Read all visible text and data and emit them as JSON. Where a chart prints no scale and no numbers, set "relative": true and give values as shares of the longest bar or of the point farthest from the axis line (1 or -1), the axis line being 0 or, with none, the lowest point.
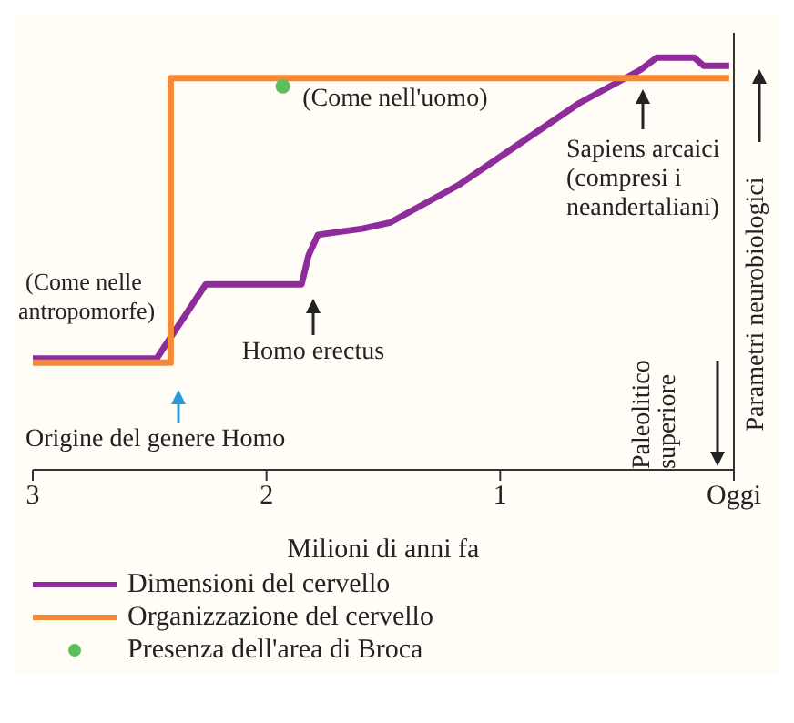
{
  "chart_data": {
    "type": "line",
    "relative": true,
    "xlabel": "Milioni di anni fa",
    "ylabel": "Parametri neurobiologici",
    "xlim": [
      3,
      0
    ],
    "xticks": [
      3,
      2,
      1,
      {
        "value": 0,
        "label": "Oggi"
      }
    ],
    "grid": false,
    "legend": "bottom left",
    "series": [
      {
        "name": "Dimensioni del cervello",
        "color": "#8e2c9c",
        "x": [
          3,
          2.47,
          2.26,
          1.85,
          1.82,
          1.78,
          1.59,
          1.47,
          1.18,
          0.92,
          0.66,
          0.4,
          0.33,
          0.17,
          0.13,
          0.02
        ],
        "values": [
          0.27,
          0.27,
          0.45,
          0.45,
          0.52,
          0.57,
          0.585,
          0.6,
          0.69,
          0.79,
          0.89,
          0.97,
          1,
          1,
          0.98,
          0.98
        ]
      },
      {
        "name": "Organizzazione del cervello",
        "color": "#f28a3a",
        "x": [
          3,
          2.41,
          2.41,
          0.02
        ],
        "values": [
          0.26,
          0.26,
          0.95,
          0.95
        ]
      },
      {
        "name": "Presenza dell'area di Broca",
        "type": "scatter",
        "color": "#5cbf5c",
        "x": [
          1.93
        ],
        "values": [
          0.93
        ]
      }
    ],
    "annotations": [
      {
        "text": "(Come nelle antropomorfe)",
        "x": 2.72,
        "y": 0.27
      },
      {
        "text": "(Come nell'uomo)",
        "x": 1.45,
        "y": 0.95
      },
      {
        "text": "Homo erectus",
        "x": 1.8,
        "y": 0.45
      },
      {
        "text": "Sapiens arcaici (compresi i neandertaliani)",
        "x": 0.39,
        "y": 0.95
      },
      "Origine del genere Homo",
      "Paleolitico superiore"
    ]
  }
}
